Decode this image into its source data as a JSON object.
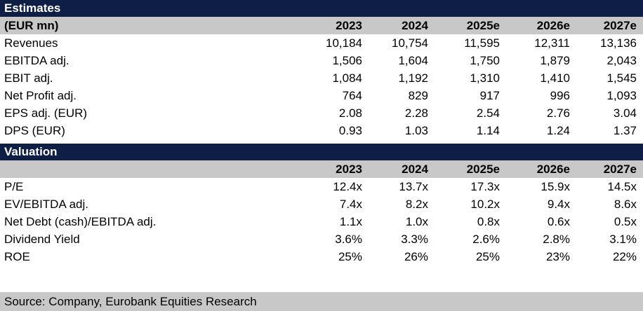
{
  "estimates": {
    "title": "Estimates",
    "header": {
      "label": "(EUR mn)",
      "years": [
        "2023",
        "2024",
        "2025e",
        "2026e",
        "2027e"
      ]
    },
    "rows": [
      {
        "label": "Revenues",
        "values": [
          "10,184",
          "10,754",
          "11,595",
          "12,311",
          "13,136"
        ]
      },
      {
        "label": "EBITDA adj.",
        "values": [
          "1,506",
          "1,604",
          "1,750",
          "1,879",
          "2,043"
        ]
      },
      {
        "label": "EBIT adj.",
        "values": [
          "1,084",
          "1,192",
          "1,310",
          "1,410",
          "1,545"
        ]
      },
      {
        "label": "Net Profit adj.",
        "values": [
          "764",
          "829",
          "917",
          "996",
          "1,093"
        ]
      },
      {
        "label": "EPS adj. (EUR)",
        "values": [
          "2.08",
          "2.28",
          "2.54",
          "2.76",
          "3.04"
        ]
      },
      {
        "label": "DPS (EUR)",
        "values": [
          "0.93",
          "1.03",
          "1.14",
          "1.24",
          "1.37"
        ]
      }
    ]
  },
  "valuation": {
    "title": "Valuation",
    "header": {
      "label": "",
      "years": [
        "2023",
        "2024",
        "2025e",
        "2026e",
        "2027e"
      ]
    },
    "rows": [
      {
        "label": "P/E",
        "values": [
          "12.4x",
          "13.7x",
          "17.3x",
          "15.9x",
          "14.5x"
        ]
      },
      {
        "label": "EV/EBITDA adj.",
        "values": [
          "7.4x",
          "8.2x",
          "10.2x",
          "9.4x",
          "8.6x"
        ]
      },
      {
        "label": "Net Debt (cash)/EBITDA adj.",
        "values": [
          "1.1x",
          "1.0x",
          "0.8x",
          "0.6x",
          "0.5x"
        ]
      },
      {
        "label": "Dividend Yield",
        "values": [
          "3.6%",
          "3.3%",
          "2.6%",
          "2.8%",
          "3.1%"
        ]
      },
      {
        "label": "ROE",
        "values": [
          "25%",
          "26%",
          "25%",
          "23%",
          "22%"
        ]
      }
    ]
  },
  "footer": {
    "source": "Source: Company, Eurobank Equities Research"
  },
  "colors": {
    "title_bg": "#0e1e45",
    "header_bg": "#c8c8c8"
  }
}
